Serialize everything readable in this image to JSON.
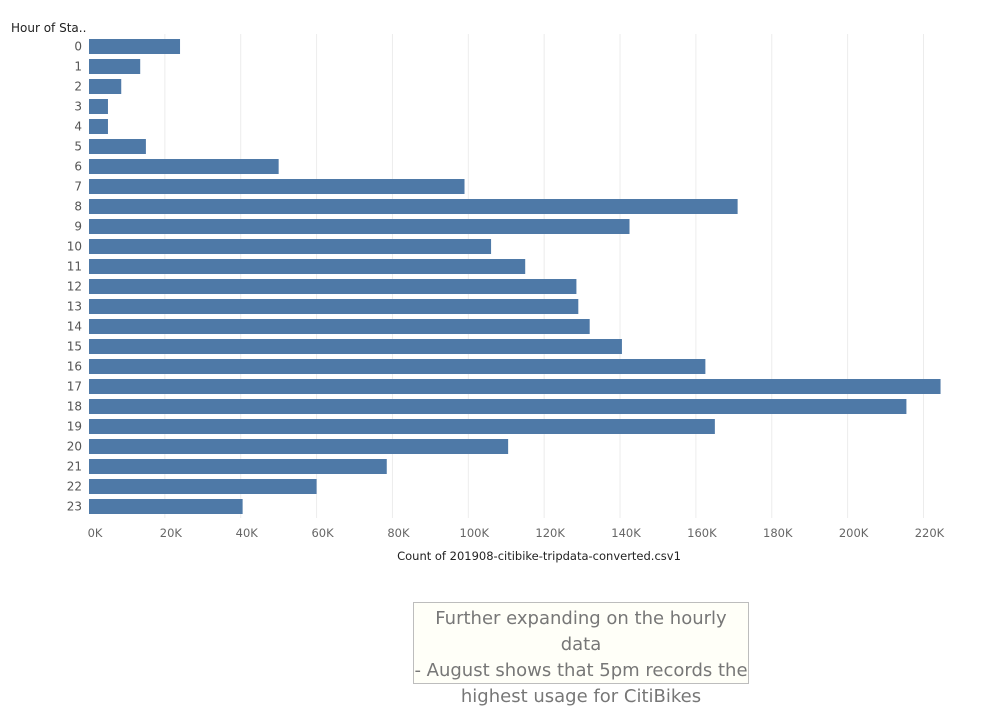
{
  "chart_data": {
    "type": "bar",
    "orientation": "horizontal",
    "ylabel": "Hour of Sta..",
    "xlabel": "Count of 201908-citibike-tripdata-converted.csv1",
    "categories": [
      "0",
      "1",
      "2",
      "3",
      "4",
      "5",
      "6",
      "7",
      "8",
      "9",
      "10",
      "11",
      "12",
      "13",
      "14",
      "15",
      "16",
      "17",
      "18",
      "19",
      "20",
      "21",
      "22",
      "23"
    ],
    "values": [
      24000,
      13500,
      8500,
      5000,
      5000,
      15000,
      50000,
      99000,
      171000,
      142500,
      106000,
      115000,
      128500,
      129000,
      132000,
      140500,
      162500,
      224500,
      215500,
      165000,
      110500,
      78500,
      60000,
      40500
    ],
    "xticks": [
      "0K",
      "20K",
      "40K",
      "60K",
      "80K",
      "100K",
      "120K",
      "140K",
      "160K",
      "180K",
      "200K",
      "220K"
    ],
    "xlim": [
      0,
      232000
    ],
    "grid": "vertical",
    "colors": {
      "bar": "#4e79a7"
    }
  },
  "annotation": {
    "lines": [
      "Further expanding on the hourly data",
      "- August shows that 5pm records the",
      "highest usage for CitiBikes"
    ]
  }
}
